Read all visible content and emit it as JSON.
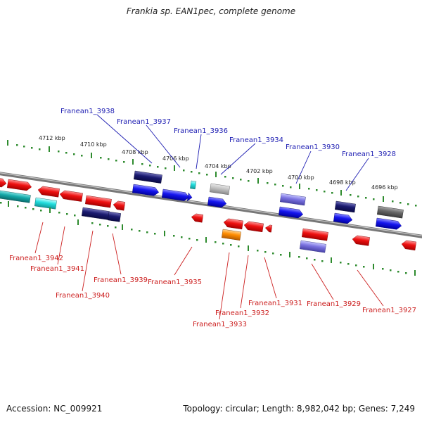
{
  "title": "Frankia sp. EAN1pec, complete genome",
  "footer": {
    "accession": "Accession: NC_009921",
    "summary": "Topology: circular; Length: 8,982,042 bp; Genes: 7,249"
  },
  "colors": {
    "backbone": "#8a8a8a",
    "tick": "#2e8b2e",
    "top_label": "#1f1fb3",
    "bottom_label": "#cc1f1f"
  },
  "scale_labels": [
    "4712 kbp",
    "4710 kbp",
    "4708 kbp",
    "4706 kbp",
    "4704 kbp",
    "4702 kbp",
    "4700 kbp",
    "4698 kbp",
    "4696 kbp"
  ],
  "top_labels": [
    "Franean1_3938",
    "Franean1_3937",
    "Franean1_3936",
    "Franean1_3934",
    "Franean1_3930",
    "Franean1_3928"
  ],
  "bottom_labels": [
    "Franean1_3942",
    "Franean1_3941",
    "Franean1_3940",
    "Franean1_3939",
    "Franean1_3935",
    "Franean1_3933",
    "Franean1_3932",
    "Franean1_3931",
    "Franean1_3929",
    "Franean1_3927"
  ]
}
